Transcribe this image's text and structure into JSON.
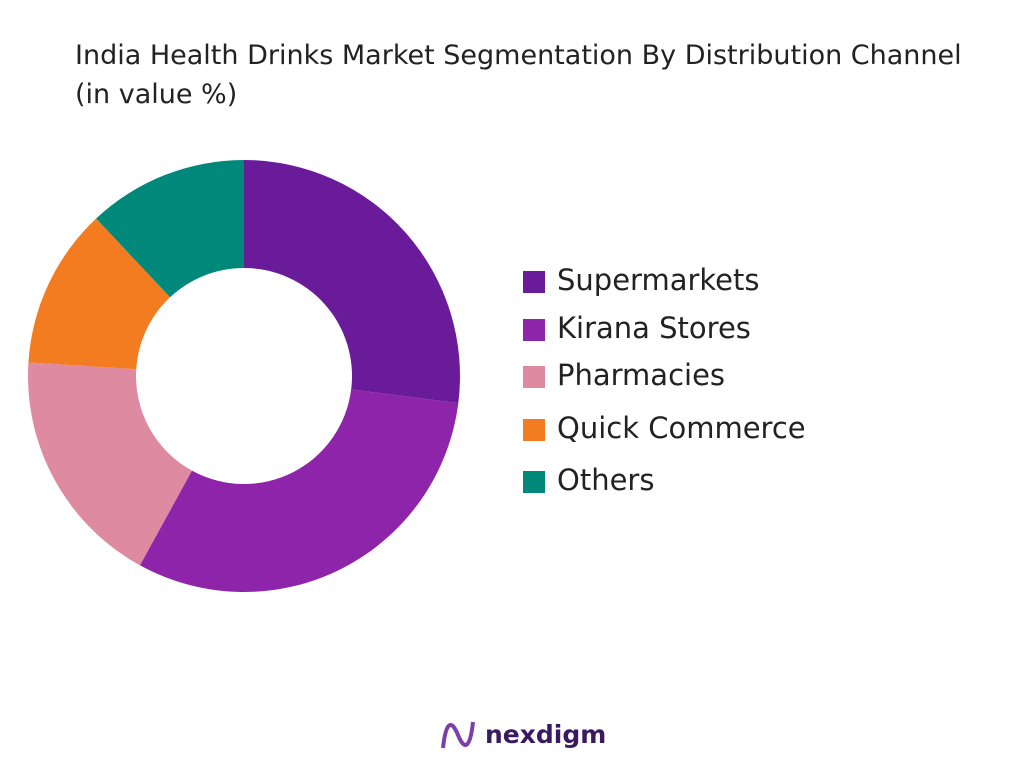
{
  "chart_data": {
    "type": "donut",
    "title": "India Health Drinks Market Segmentation By Distribution Channel (in value %)",
    "categories": [
      "Supermarkets",
      "Kirana Stores",
      "Pharmacies",
      "Quick Commerce",
      "Others"
    ],
    "values": [
      27,
      31,
      18,
      12,
      12
    ],
    "colors": [
      "#6a1b9a",
      "#8e24aa",
      "#de8aa0",
      "#f47c20",
      "#00897b"
    ],
    "legend": "right"
  },
  "footer": {
    "logo_text": "nexdigm"
  }
}
